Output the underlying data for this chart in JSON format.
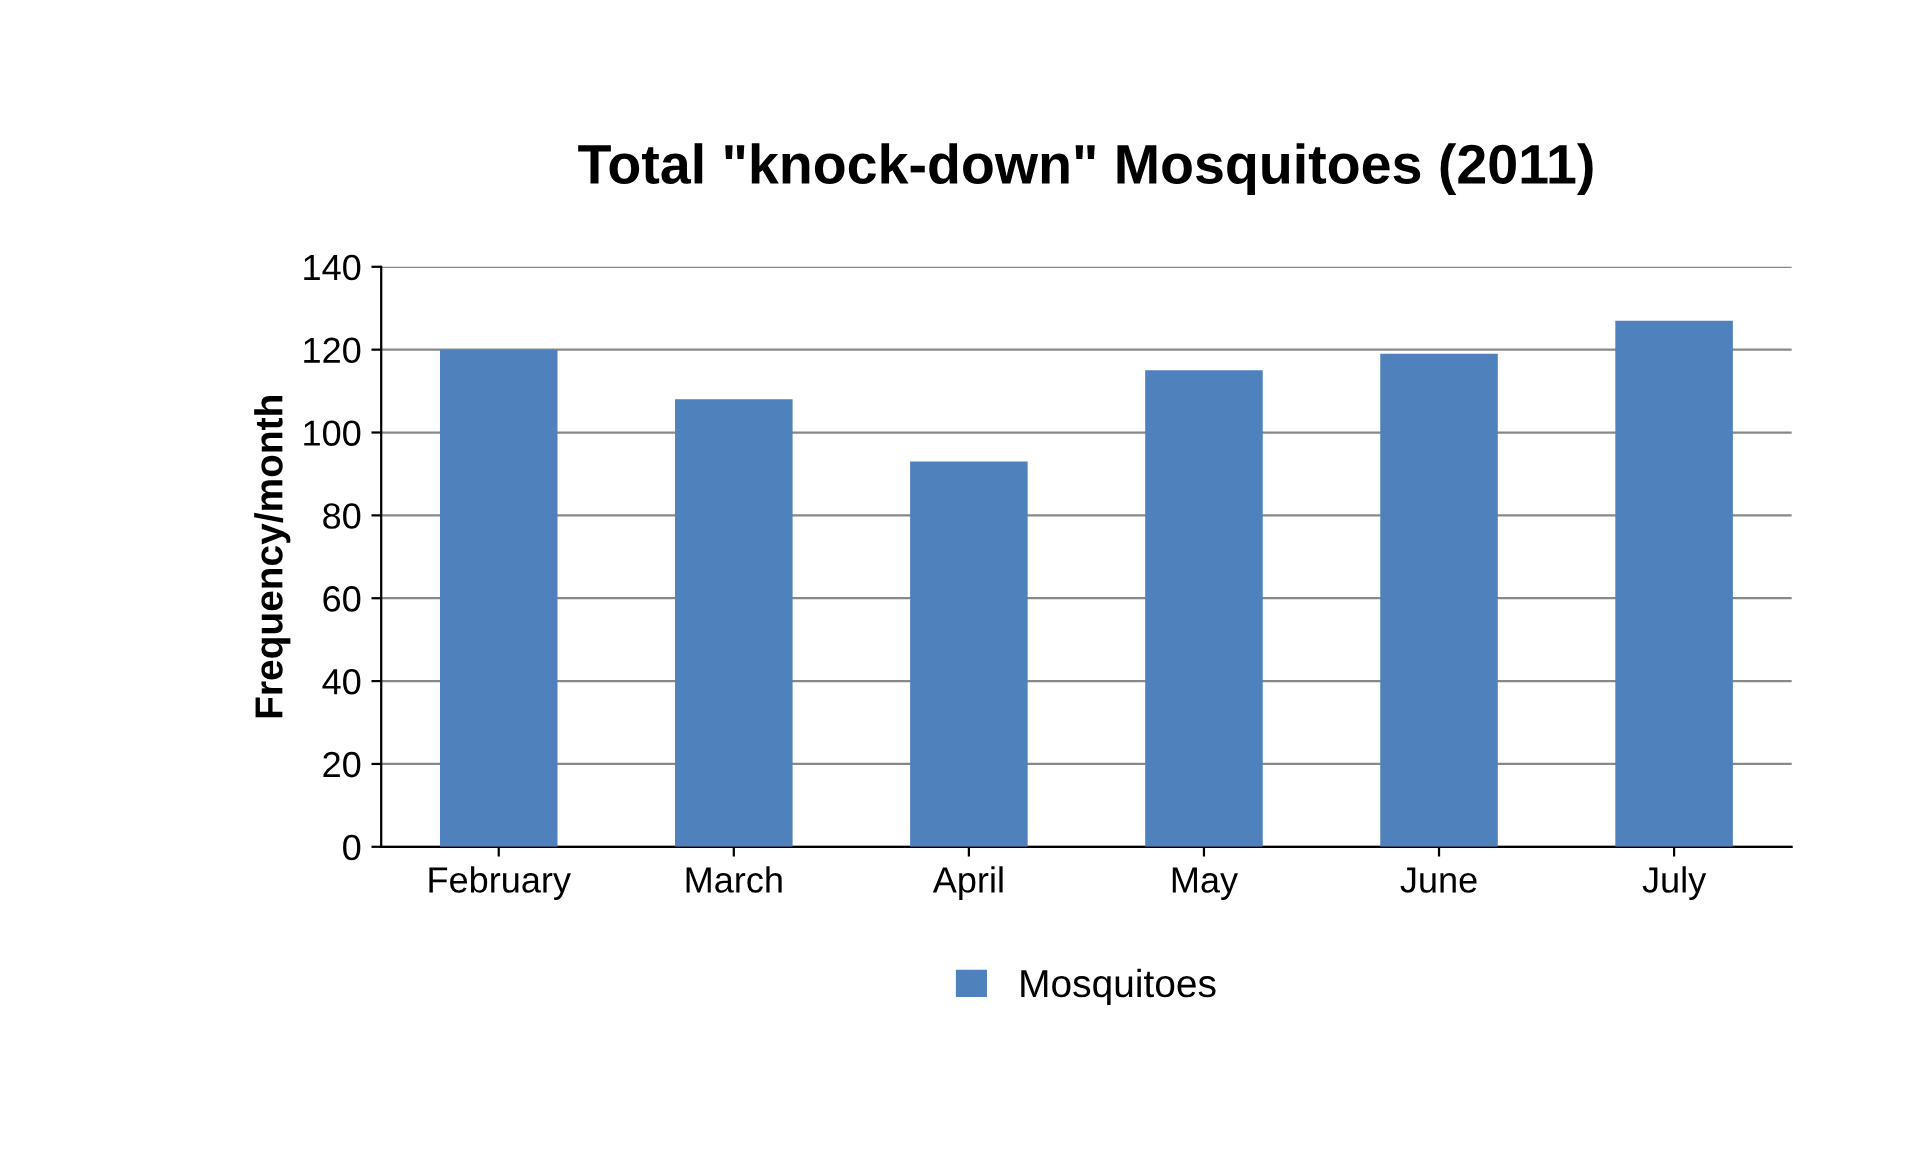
{
  "chart_data": {
    "type": "bar",
    "title": "Total \"knock-down\" Mosquitoes (2011)",
    "ylabel": "Frequency/month",
    "categories": [
      "February",
      "March",
      "April",
      "May",
      "June",
      "July"
    ],
    "series": [
      {
        "name": "Mosquitoes",
        "color": "#4f81bd",
        "values": [
          120,
          108,
          93,
          115,
          119,
          127
        ]
      }
    ],
    "ylim": [
      0,
      140
    ],
    "yticks": [
      0,
      20,
      40,
      60,
      80,
      100,
      120,
      140
    ],
    "grid": "y",
    "legend": "bottom"
  }
}
